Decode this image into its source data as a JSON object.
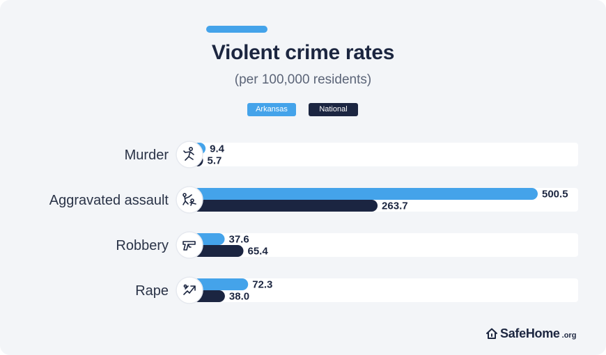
{
  "header": {
    "title": "Violent crime rates",
    "subtitle": "(per 100,000 residents)"
  },
  "legend": {
    "arkansas": "Arkansas",
    "national": "National"
  },
  "brand": {
    "name": "SafeHome",
    "tld": ".org"
  },
  "colors": {
    "arkansas": "#44a3ea",
    "national": "#1b2541",
    "track": "#ffffff",
    "background": "#f3f5f8"
  },
  "chart_data": {
    "type": "bar",
    "orientation": "horizontal",
    "title": "Violent crime rates",
    "subtitle": "(per 100,000 residents)",
    "categories": [
      "Murder",
      "Aggravated assault",
      "Robbery",
      "Rape"
    ],
    "icons": [
      "murder-icon",
      "assault-icon",
      "gun-icon",
      "rape-icon"
    ],
    "series": [
      {
        "name": "Arkansas",
        "values": [
          9.4,
          500.5,
          37.6,
          72.3
        ],
        "labels": [
          "9.4",
          "500.5",
          "37.6",
          "72.3"
        ]
      },
      {
        "name": "National",
        "values": [
          5.7,
          263.7,
          65.4,
          38.0
        ],
        "labels": [
          "5.7",
          "263.7",
          "65.4",
          "38.0"
        ]
      }
    ],
    "xlim": [
      0,
      500.5
    ],
    "legend_position": "top-center",
    "grid": false
  }
}
